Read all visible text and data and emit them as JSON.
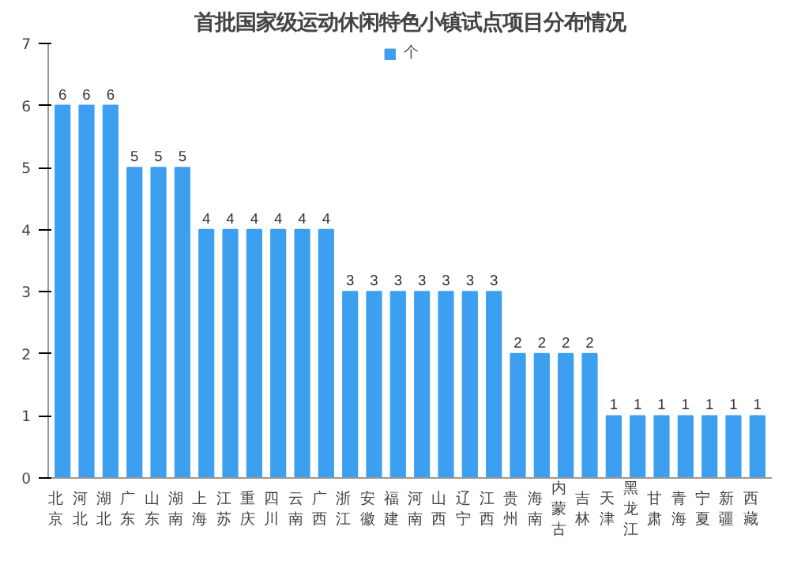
{
  "chart_data": {
    "type": "bar",
    "title": "首批国家级运动休闲特色小镇试点项目分布情况",
    "categories": [
      "北京",
      "河北",
      "湖北",
      "广东",
      "山东",
      "湖南",
      "上海",
      "江苏",
      "重庆",
      "四川",
      "云南",
      "广西",
      "浙江",
      "安徽",
      "福建",
      "河南",
      "山西",
      "辽宁",
      "江西",
      "贵州",
      "海南",
      "内蒙古",
      "吉林",
      "天津",
      "黑龙江",
      "甘肃",
      "青海",
      "宁夏",
      "新疆",
      "西藏"
    ],
    "series": [
      {
        "name": "个",
        "color": "#3d9ff0",
        "values": [
          6,
          6,
          6,
          5,
          5,
          5,
          4,
          4,
          4,
          4,
          4,
          4,
          3,
          3,
          3,
          3,
          3,
          3,
          3,
          2,
          2,
          2,
          2,
          1,
          1,
          1,
          1,
          1,
          1,
          1
        ]
      }
    ],
    "ylim": [
      0,
      7
    ],
    "yticks": [
      0,
      1,
      2,
      3,
      4,
      5,
      6,
      7
    ],
    "data_labels": true,
    "legend": "top",
    "grid": false
  }
}
